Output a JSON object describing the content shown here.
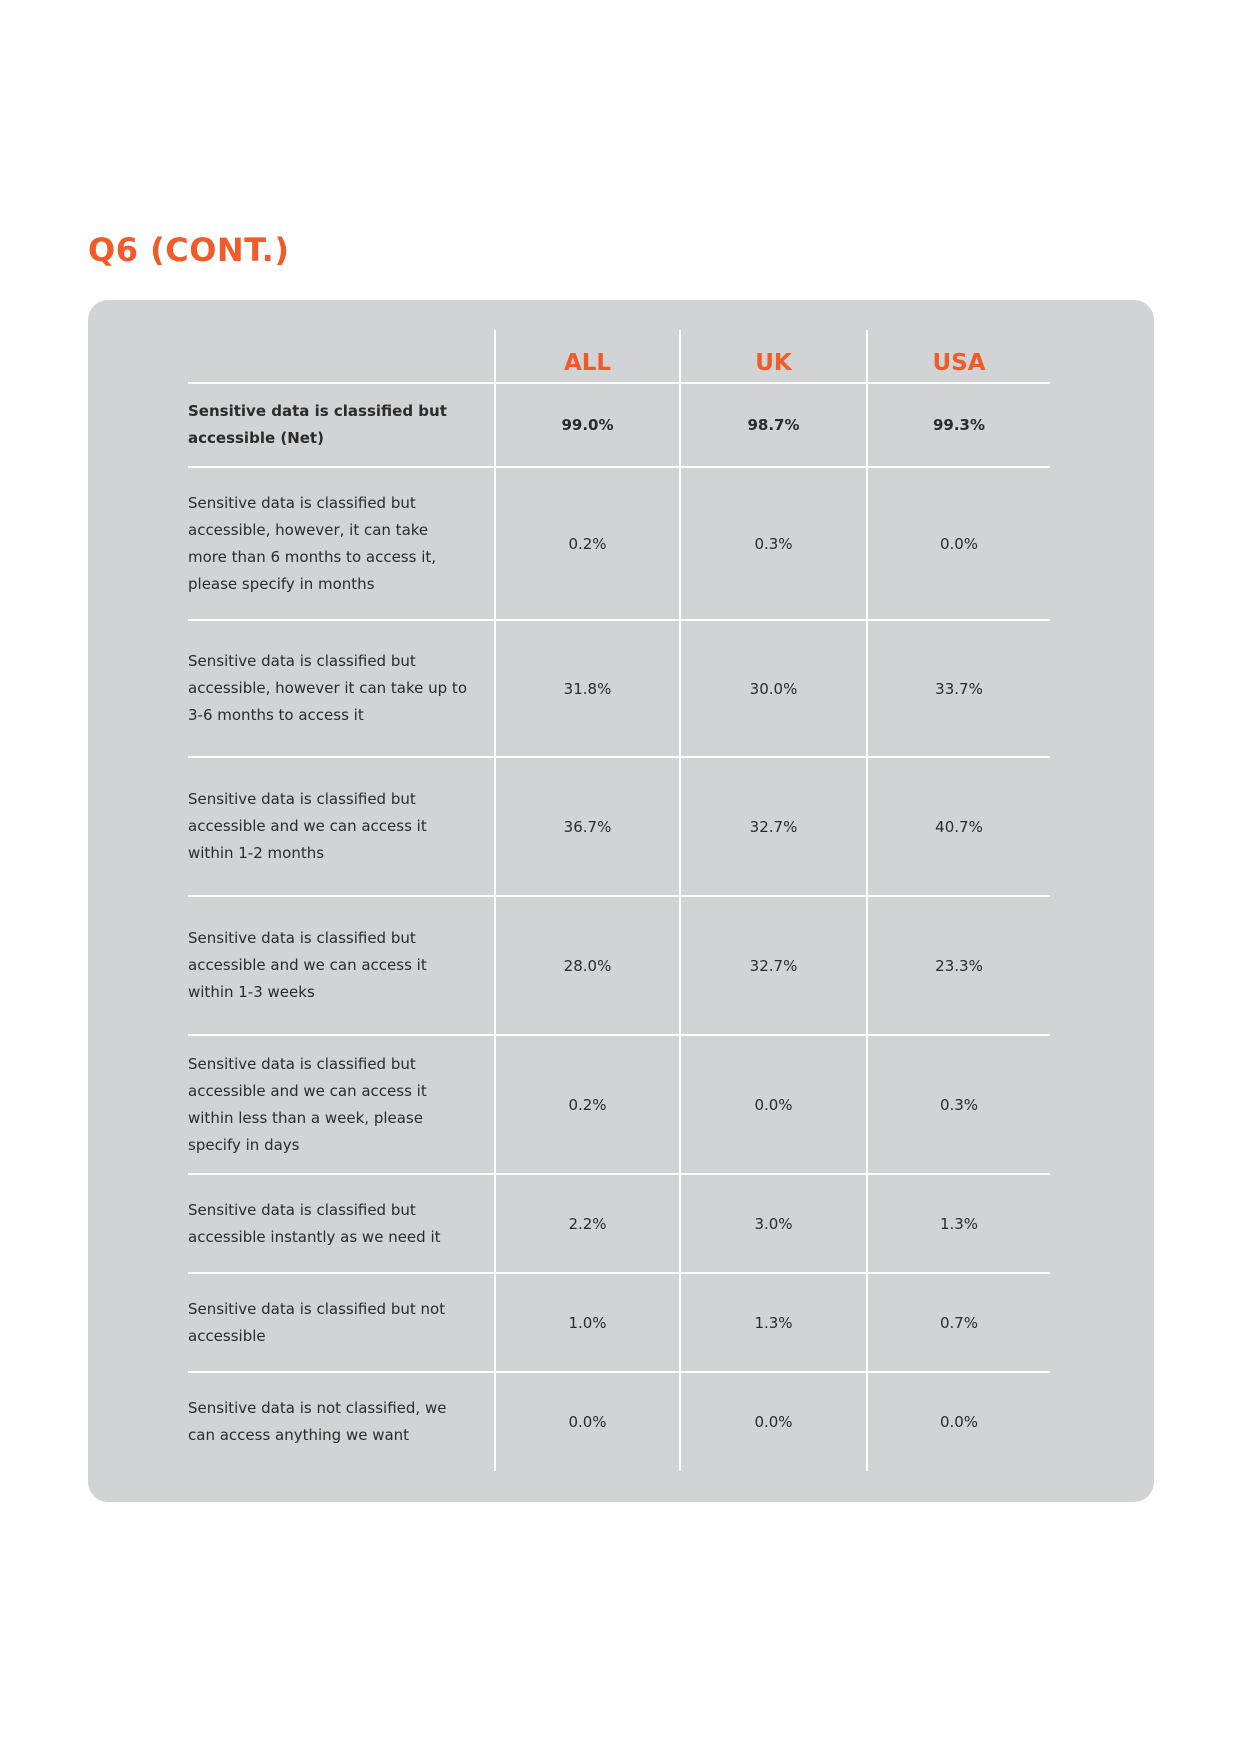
{
  "theme": {
    "accent": "#f15a29",
    "panel": "#d1d3d4"
  },
  "page": {
    "title": "Q6 (CONT.)"
  },
  "table": {
    "columns": [
      "",
      "ALL",
      "UK",
      "USA"
    ],
    "rows": [
      {
        "label": "Sensitive data is classified but accessible (Net)",
        "all": "99.0%",
        "uk": "98.7%",
        "usa": "99.3%",
        "bold": true
      },
      {
        "label": "Sensitive data is classified but accessible, however, it can take more than 6 months to access it, please specify in months",
        "all": "0.2%",
        "uk": "0.3%",
        "usa": "0.0%"
      },
      {
        "label": "Sensitive data is classified but accessible, however it can take up to 3-6 months to access it",
        "all": "31.8%",
        "uk": "30.0%",
        "usa": "33.7%"
      },
      {
        "label": "Sensitive data is classified but accessible and we can access it within 1-2 months",
        "all": "36.7%",
        "uk": "32.7%",
        "usa": "40.7%"
      },
      {
        "label": "Sensitive data is classified but accessible and we can access it within 1-3 weeks",
        "all": "28.0%",
        "uk": "32.7%",
        "usa": "23.3%"
      },
      {
        "label": "Sensitive data is classified but accessible and we can access it within less than a week, please specify in days",
        "all": "0.2%",
        "uk": "0.0%",
        "usa": "0.3%"
      },
      {
        "label": "Sensitive data is classified but accessible instantly as we need it",
        "all": "2.2%",
        "uk": "3.0%",
        "usa": "1.3%"
      },
      {
        "label": "Sensitive data is classified but not accessible",
        "all": "1.0%",
        "uk": "1.3%",
        "usa": "0.7%"
      },
      {
        "label": "Sensitive data is not classified, we can access anything we want",
        "all": "0.0%",
        "uk": "0.0%",
        "usa": "0.0%"
      }
    ]
  }
}
